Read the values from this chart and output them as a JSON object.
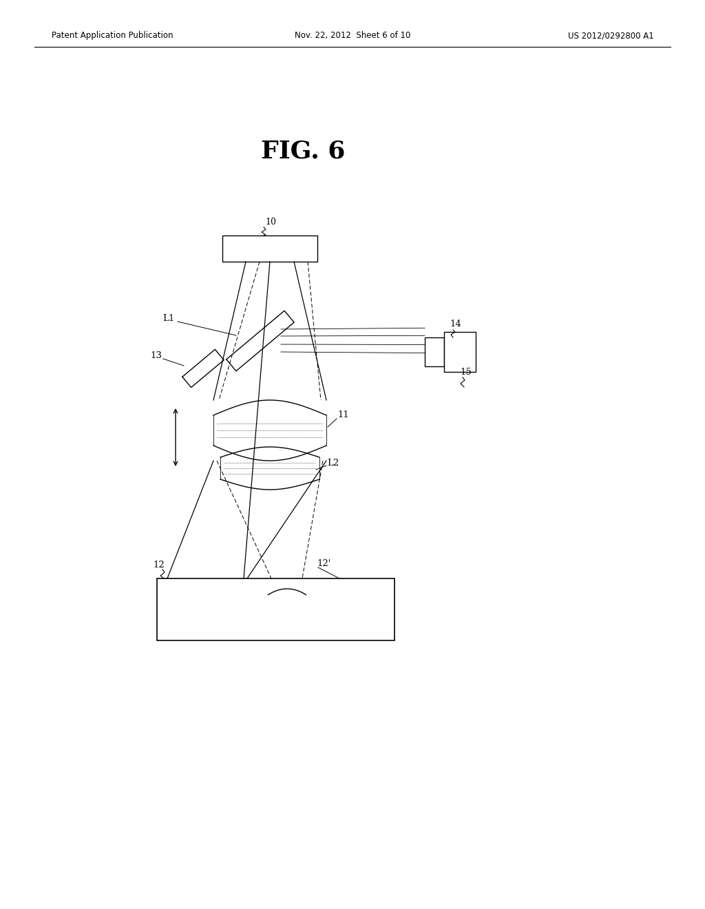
{
  "title": "FIG. 6",
  "header_left": "Patent Application Publication",
  "header_center": "Nov. 22, 2012  Sheet 6 of 10",
  "header_right": "US 2012/0292800 A1",
  "bg_color": "#ffffff",
  "text_color": "#000000"
}
